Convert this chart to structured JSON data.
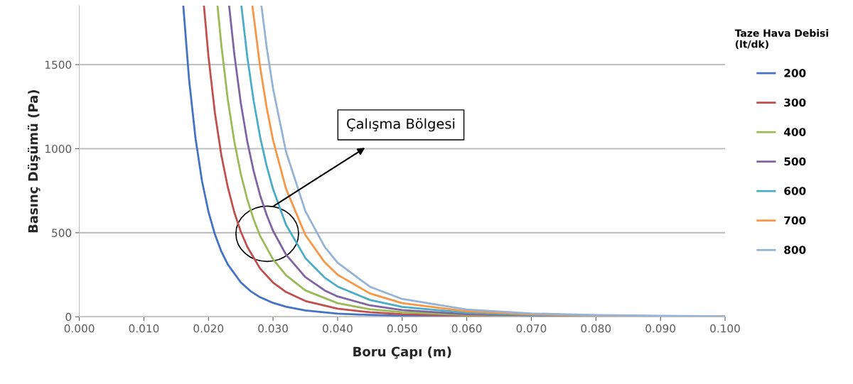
{
  "chart_data": {
    "type": "line",
    "xlabel": "Boru Çapı (m)",
    "ylabel": "Basınç Düşümü (Pa)",
    "legend_title": "Taze Hava Debisi\n(lt/dk)",
    "xlim": [
      0,
      0.1
    ],
    "ylim": [
      0,
      1850
    ],
    "xticks": [
      {
        "value": 0,
        "label": "0.000"
      },
      {
        "value": 0.01,
        "label": "0.010"
      },
      {
        "value": 0.02,
        "label": "0.020"
      },
      {
        "value": 0.03,
        "label": "0.030"
      },
      {
        "value": 0.04,
        "label": "0.040"
      },
      {
        "value": 0.05,
        "label": "0.050"
      },
      {
        "value": 0.06,
        "label": "0.060"
      },
      {
        "value": 0.07,
        "label": "0.070"
      },
      {
        "value": 0.08,
        "label": "0.080"
      },
      {
        "value": 0.09,
        "label": "0.090"
      },
      {
        "value": 0.1,
        "label": "0.100"
      }
    ],
    "yticks": [
      0,
      500,
      1000,
      1500
    ],
    "grid": "y",
    "legend": "right",
    "marker": "none",
    "line_style": "solid",
    "annotations": [
      "Çalışma Bölgesi"
    ],
    "series": [
      {
        "name": "200",
        "color": "#4472c4",
        "x": [
          0.0161,
          0.017,
          0.018,
          0.019,
          0.02,
          0.021,
          0.022,
          0.023,
          0.025,
          0.0265,
          0.028,
          0.03,
          0.032,
          0.035,
          0.04,
          0.045,
          0.05,
          0.06,
          0.07,
          0.08,
          0.1
        ],
        "values": [
          1850,
          1410,
          1060,
          807,
          625,
          490,
          388,
          311,
          205,
          153,
          116,
          83,
          60,
          38,
          19,
          11,
          6,
          3,
          1,
          1,
          0
        ]
      },
      {
        "name": "300",
        "color": "#c0504d",
        "x": [
          0.0193,
          0.02,
          0.021,
          0.022,
          0.023,
          0.024,
          0.025,
          0.026,
          0.028,
          0.03,
          0.032,
          0.035,
          0.04,
          0.045,
          0.05,
          0.06,
          0.07,
          0.08,
          0.1
        ],
        "values": [
          1850,
          1548,
          1212,
          960,
          770,
          622,
          507,
          417,
          287,
          204,
          148,
          94,
          48,
          27,
          16,
          7,
          3,
          2,
          1
        ]
      },
      {
        "name": "400",
        "color": "#9bbb59",
        "x": [
          0.0214,
          0.022,
          0.023,
          0.024,
          0.025,
          0.026,
          0.027,
          0.028,
          0.03,
          0.032,
          0.035,
          0.04,
          0.045,
          0.05,
          0.06,
          0.07,
          0.08,
          0.1
        ],
        "values": [
          1850,
          1613,
          1290,
          1043,
          851,
          700,
          579,
          481,
          342,
          248,
          157,
          81,
          45,
          27,
          11,
          5,
          3,
          1
        ]
      },
      {
        "name": "500",
        "color": "#8064a2",
        "x": [
          0.0232,
          0.024,
          0.025,
          0.026,
          0.027,
          0.028,
          0.029,
          0.03,
          0.032,
          0.035,
          0.038,
          0.04,
          0.045,
          0.05,
          0.06,
          0.07,
          0.08,
          0.1
        ],
        "values": [
          1850,
          1563,
          1273,
          1045,
          866,
          723,
          607,
          511,
          370,
          236,
          157,
          121,
          68,
          40,
          16,
          8,
          4,
          1
        ]
      },
      {
        "name": "600",
        "color": "#4bacc6",
        "x": [
          0.0251,
          0.026,
          0.027,
          0.028,
          0.029,
          0.03,
          0.032,
          0.035,
          0.038,
          0.04,
          0.045,
          0.05,
          0.06,
          0.07,
          0.08,
          0.09,
          0.1
        ],
        "values": [
          1850,
          1549,
          1284,
          1069,
          899,
          760,
          548,
          350,
          233,
          180,
          100,
          59,
          24,
          11,
          6,
          3,
          2
        ]
      },
      {
        "name": "700",
        "color": "#f79646",
        "x": [
          0.0268,
          0.028,
          0.029,
          0.03,
          0.032,
          0.035,
          0.038,
          0.04,
          0.045,
          0.05,
          0.06,
          0.07,
          0.08,
          0.09,
          0.1
        ],
        "values": [
          1850,
          1486,
          1247,
          1051,
          763,
          487,
          324,
          250,
          139,
          81,
          33,
          15,
          8,
          4,
          3
        ]
      },
      {
        "name": "800",
        "color": "#95b3d7",
        "x": [
          0.0282,
          0.029,
          0.03,
          0.032,
          0.035,
          0.038,
          0.04,
          0.045,
          0.05,
          0.06,
          0.07,
          0.08,
          0.09,
          0.1
        ],
        "values": [
          1850,
          1608,
          1358,
          983,
          629,
          416,
          322,
          179,
          106,
          43,
          20,
          10,
          6,
          3
        ]
      }
    ]
  }
}
